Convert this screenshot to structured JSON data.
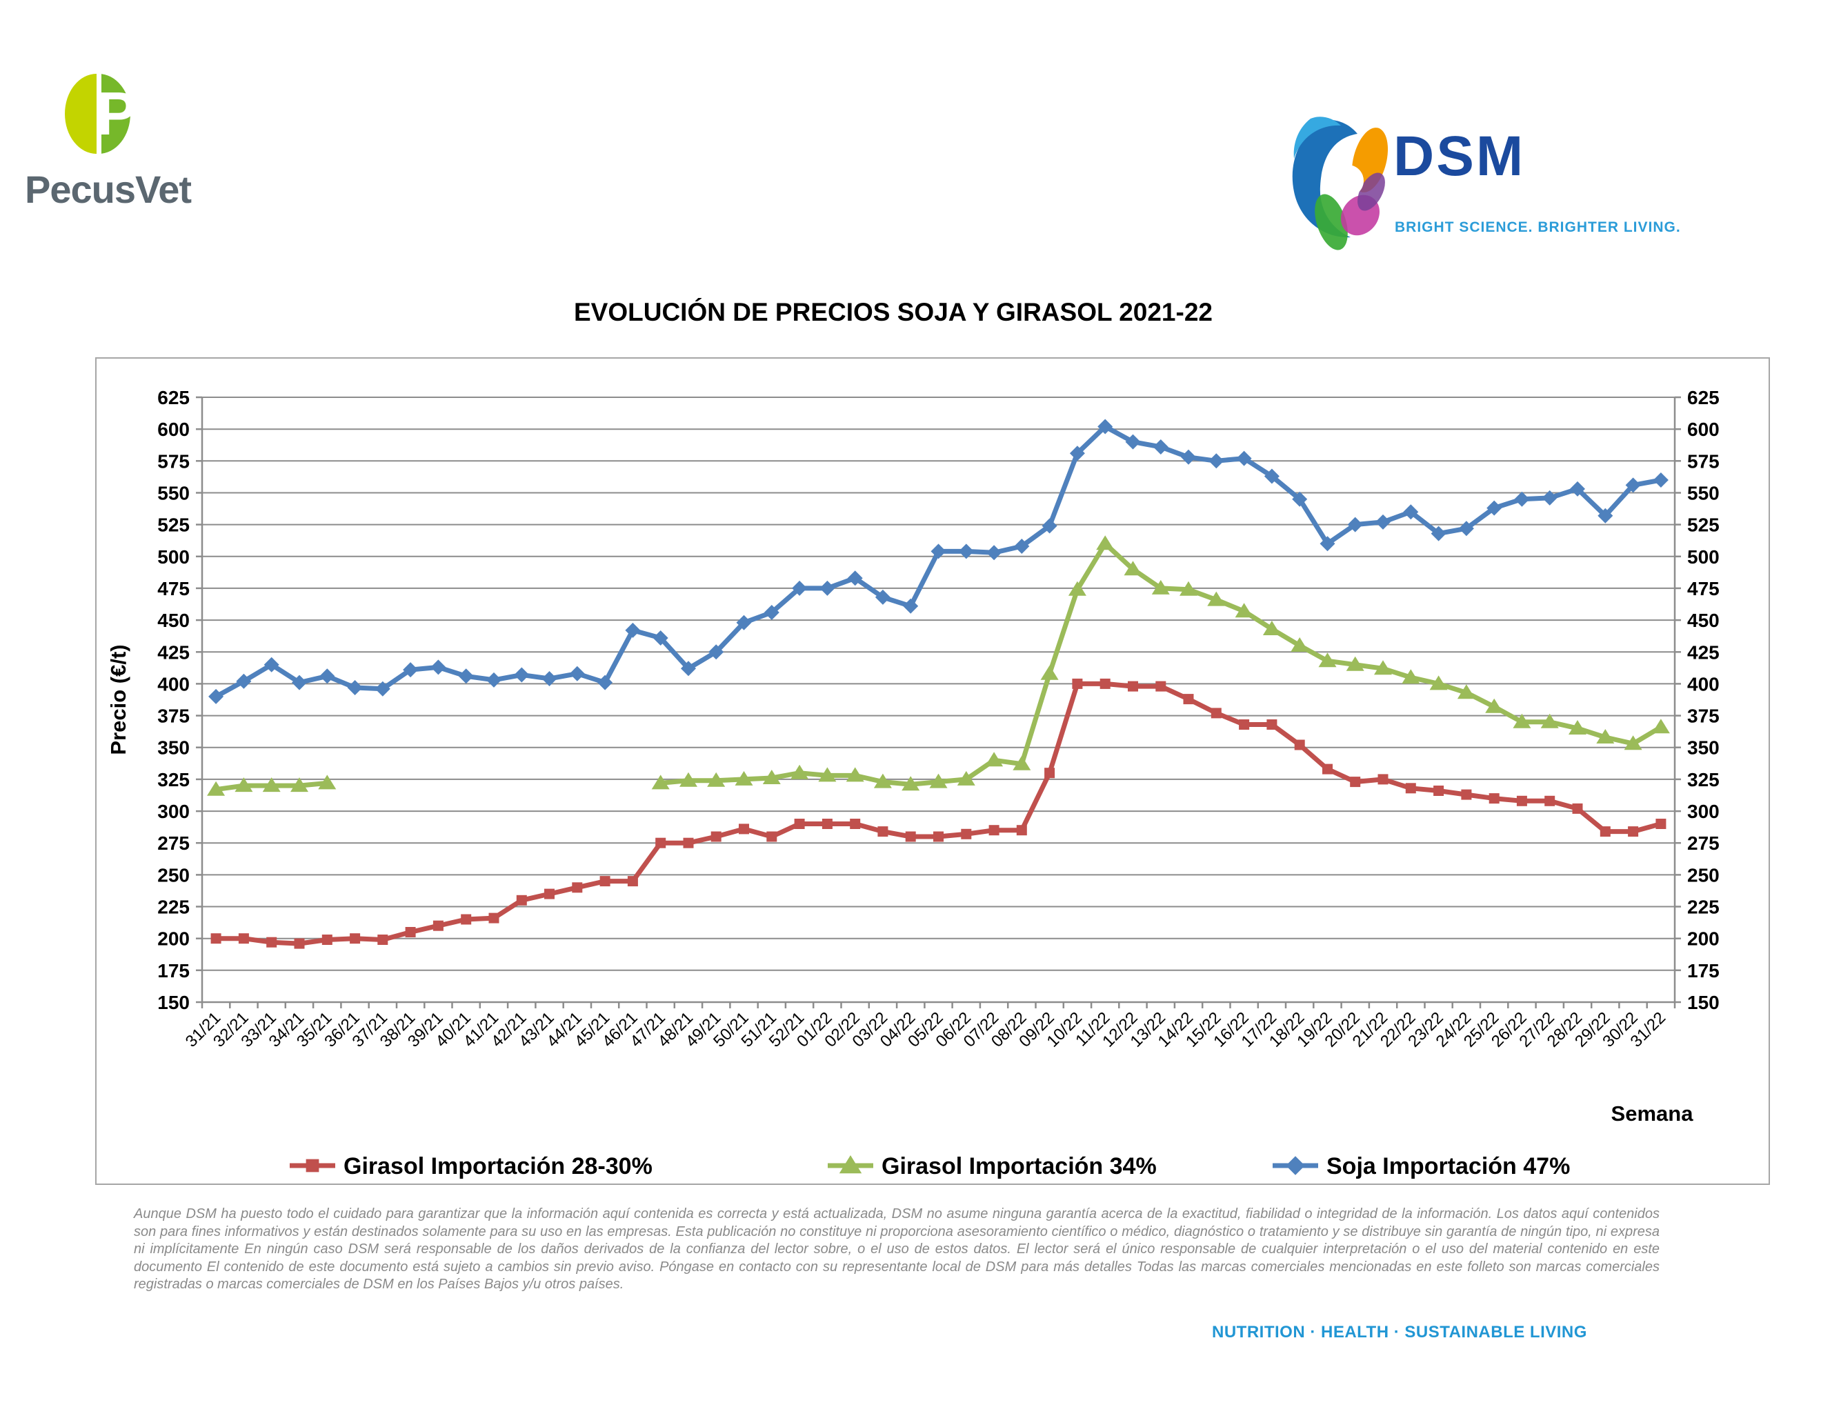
{
  "header": {
    "pecusvet": {
      "name": "PecusVet",
      "icon_letter": "P",
      "colors": {
        "leaf_left": "#c3d400",
        "leaf_right": "#76b82a",
        "text": "#5b6770"
      }
    },
    "dsm": {
      "name": "DSM",
      "tagline": "BRIGHT SCIENCE. BRIGHTER LIVING.",
      "colors": {
        "text": "#1b4a9e",
        "tagline": "#2b9cd8"
      }
    }
  },
  "chart_data": {
    "type": "line",
    "title": "EVOLUCIÓN DE PRECIOS SOJA Y GIRASOL 2021-22",
    "xlabel": "Semana",
    "ylabel": "Precio (€/t)",
    "ylim": [
      150,
      625
    ],
    "ytick_step": 25,
    "grid": true,
    "legend_position": "bottom",
    "gridline_color": "#8c8c8c",
    "categories": [
      "31/21",
      "32/21",
      "33/21",
      "34/21",
      "35/21",
      "36/21",
      "37/21",
      "38/21",
      "39/21",
      "40/21",
      "41/21",
      "42/21",
      "43/21",
      "44/21",
      "45/21",
      "46/21",
      "47/21",
      "48/21",
      "49/21",
      "50/21",
      "51/21",
      "52/21",
      "01/22",
      "02/22",
      "03/22",
      "04/22",
      "05/22",
      "06/22",
      "07/22",
      "08/22",
      "09/22",
      "10/22",
      "11/22",
      "12/22",
      "13/22",
      "14/22",
      "15/22",
      "16/22",
      "17/22",
      "18/22",
      "19/22",
      "20/22",
      "21/22",
      "22/22",
      "23/22",
      "24/22",
      "25/22",
      "26/22",
      "27/22",
      "28/22",
      "29/22",
      "30/22",
      "31/22"
    ],
    "series": [
      {
        "name": "Girasol Importación 28-30%",
        "color": "#C0504D",
        "marker": "square",
        "values": [
          200,
          200,
          197,
          196,
          199,
          200,
          199,
          205,
          210,
          215,
          216,
          230,
          235,
          240,
          245,
          245,
          275,
          275,
          280,
          286,
          280,
          290,
          290,
          290,
          284,
          280,
          280,
          282,
          285,
          285,
          330,
          400,
          400,
          398,
          398,
          388,
          377,
          368,
          368,
          352,
          333,
          323,
          325,
          318,
          316,
          313,
          310,
          308,
          308,
          302,
          284,
          284,
          290
        ]
      },
      {
        "name": "Girasol Importación 34%",
        "color": "#9BBB59",
        "marker": "triangle",
        "values": [
          317,
          320,
          320,
          320,
          322,
          null,
          null,
          null,
          null,
          null,
          null,
          null,
          null,
          null,
          null,
          null,
          322,
          324,
          324,
          325,
          326,
          330,
          328,
          328,
          323,
          321,
          323,
          325,
          340,
          337,
          408,
          474,
          510,
          490,
          475,
          474,
          466,
          457,
          443,
          430,
          418,
          415,
          412,
          405,
          400,
          393,
          382,
          370,
          370,
          365,
          358,
          353,
          366
        ]
      },
      {
        "name": "Soja Importación 47%",
        "color": "#4F81BD",
        "marker": "diamond",
        "values": [
          390,
          402,
          415,
          401,
          406,
          397,
          396,
          411,
          413,
          406,
          403,
          407,
          404,
          408,
          401,
          442,
          436,
          412,
          425,
          448,
          456,
          475,
          475,
          483,
          468,
          461,
          504,
          504,
          503,
          508,
          524,
          581,
          602,
          590,
          586,
          578,
          575,
          577,
          563,
          545,
          510,
          525,
          527,
          535,
          518,
          522,
          538,
          545,
          546,
          553,
          532,
          556,
          560
        ]
      }
    ]
  },
  "footer": {
    "disclaimer": "Aunque DSM ha puesto todo el cuidado para garantizar que la información aquí contenida es correcta y está actualizada, DSM no asume ninguna garantía acerca de la exactitud, fiabilidad o integridad de la información. Los datos aquí contenidos son para fines informativos y están destinados solamente para su uso en las empresas. Esta publicación no constituye ni proporciona asesoramiento científico o médico, diagnóstico o tratamiento y se distribuye sin garantía de ningún tipo, ni expresa ni implícitamente En ningún caso DSM será responsable de los daños derivados de la confianza del lector sobre, o el uso de estos datos. El lector será el único responsable de cualquier interpretación o el uso del material contenido en este documento El contenido de este documento está sujeto a cambios sin previo aviso. Póngase en contacto con su representante local de DSM para más detalles Todas las marcas comerciales mencionadas en este folleto son marcas comerciales registradas o marcas comerciales de DSM en los Países Bajos y/u otros países.",
    "tagline": "NUTRITION · HEALTH · SUSTAINABLE LIVING"
  }
}
